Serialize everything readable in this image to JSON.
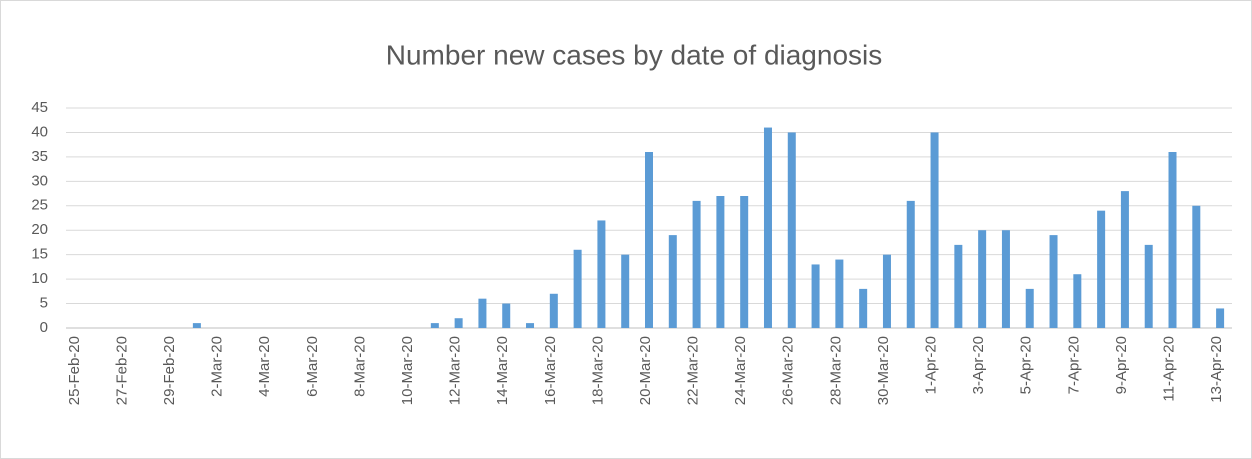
{
  "chart_data": {
    "type": "bar",
    "title": "Number new cases by date of diagnosis",
    "categories": [
      "25-Feb-20",
      null,
      "27-Feb-20",
      null,
      "29-Feb-20",
      null,
      "2-Mar-20",
      null,
      "4-Mar-20",
      null,
      "6-Mar-20",
      null,
      "8-Mar-20",
      null,
      "10-Mar-20",
      null,
      "12-Mar-20",
      null,
      "14-Mar-20",
      null,
      "16-Mar-20",
      null,
      "18-Mar-20",
      null,
      "20-Mar-20",
      null,
      "22-Mar-20",
      null,
      "24-Mar-20",
      null,
      "26-Mar-20",
      null,
      "28-Mar-20",
      null,
      "30-Mar-20",
      null,
      "1-Apr-20",
      null,
      "3-Apr-20",
      null,
      "5-Apr-20",
      null,
      "7-Apr-20",
      null,
      "9-Apr-20",
      null,
      "11-Apr-20",
      null,
      "13-Apr-20"
    ],
    "values": [
      0,
      0,
      0,
      0,
      0,
      1,
      0,
      0,
      0,
      0,
      0,
      0,
      0,
      0,
      0,
      1,
      2,
      6,
      5,
      1,
      7,
      16,
      22,
      15,
      36,
      19,
      26,
      27,
      27,
      41,
      40,
      13,
      14,
      8,
      15,
      26,
      40,
      17,
      20,
      20,
      8,
      19,
      11,
      24,
      28,
      17,
      36,
      25,
      4
    ],
    "color": "#5b9bd5",
    "ylim": [
      0,
      45
    ],
    "yticks": [
      0,
      5,
      10,
      15,
      20,
      25,
      30,
      35,
      40,
      45
    ],
    "grid": true
  }
}
